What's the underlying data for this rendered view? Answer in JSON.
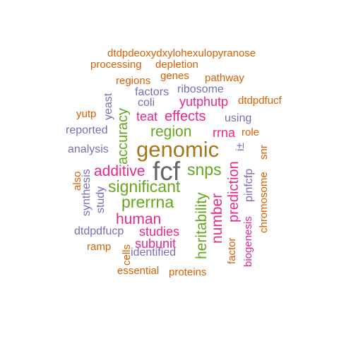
{
  "palette": {
    "orange": "#d95f02",
    "purple": "#7570b3",
    "pink": "#e7298a",
    "green": "#66a61e",
    "brown": "#a6761d",
    "gray": "#666666"
  },
  "words": [
    {
      "text": "dtdpdeoxydxylohexulopyranose",
      "color": "orange",
      "orientation": "horizontal"
    },
    {
      "text": "processing",
      "color": "orange",
      "orientation": "horizontal"
    },
    {
      "text": "depletion",
      "color": "orange",
      "orientation": "horizontal"
    },
    {
      "text": "genes",
      "color": "orange",
      "orientation": "horizontal"
    },
    {
      "text": "regions",
      "color": "orange",
      "orientation": "horizontal"
    },
    {
      "text": "pathway",
      "color": "orange",
      "orientation": "horizontal"
    },
    {
      "text": "factors",
      "color": "purple",
      "orientation": "horizontal"
    },
    {
      "text": "ribosome",
      "color": "purple",
      "orientation": "horizontal"
    },
    {
      "text": "coli",
      "color": "purple",
      "orientation": "horizontal"
    },
    {
      "text": "dtdpdfucf",
      "color": "orange",
      "orientation": "horizontal"
    },
    {
      "text": "yeast",
      "color": "purple",
      "orientation": "vertical"
    },
    {
      "text": "yutphutp",
      "color": "pink",
      "orientation": "horizontal"
    },
    {
      "text": "yutp",
      "color": "orange",
      "orientation": "horizontal"
    },
    {
      "text": "teat",
      "color": "pink",
      "orientation": "horizontal"
    },
    {
      "text": "effects",
      "color": "pink",
      "orientation": "horizontal"
    },
    {
      "text": "using",
      "color": "purple",
      "orientation": "horizontal"
    },
    {
      "text": "accuracy",
      "color": "green",
      "orientation": "vertical"
    },
    {
      "text": "reported",
      "color": "purple",
      "orientation": "horizontal"
    },
    {
      "text": "region",
      "color": "green",
      "orientation": "horizontal"
    },
    {
      "text": "rrna",
      "color": "pink",
      "orientation": "horizontal"
    },
    {
      "text": "role",
      "color": "orange",
      "orientation": "horizontal"
    },
    {
      "text": "genomic",
      "color": "brown",
      "orientation": "horizontal"
    },
    {
      "text": "analysis",
      "color": "purple",
      "orientation": "horizontal"
    },
    {
      "text": "i±",
      "color": "purple",
      "orientation": "vertical"
    },
    {
      "text": "snr",
      "color": "orange",
      "orientation": "vertical"
    },
    {
      "text": "fcf",
      "color": "gray",
      "orientation": "horizontal"
    },
    {
      "text": "additive",
      "color": "pink",
      "orientation": "horizontal"
    },
    {
      "text": "snps",
      "color": "green",
      "orientation": "horizontal"
    },
    {
      "text": "also",
      "color": "orange",
      "orientation": "vertical"
    },
    {
      "text": "synthesis",
      "color": "purple",
      "orientation": "vertical"
    },
    {
      "text": "study",
      "color": "purple",
      "orientation": "vertical"
    },
    {
      "text": "significant",
      "color": "green",
      "orientation": "horizontal"
    },
    {
      "text": "heritability",
      "color": "green",
      "orientation": "vertical"
    },
    {
      "text": "number",
      "color": "pink",
      "orientation": "vertical"
    },
    {
      "text": "prediction",
      "color": "pink",
      "orientation": "vertical"
    },
    {
      "text": "pinfcfp",
      "color": "purple",
      "orientation": "vertical"
    },
    {
      "text": "chromosome",
      "color": "orange",
      "orientation": "vertical"
    },
    {
      "text": "prerrna",
      "color": "green",
      "orientation": "horizontal"
    },
    {
      "text": "human",
      "color": "pink",
      "orientation": "horizontal"
    },
    {
      "text": "dtdpdfucp",
      "color": "purple",
      "orientation": "horizontal"
    },
    {
      "text": "studies",
      "color": "pink",
      "orientation": "horizontal"
    },
    {
      "text": "subunit",
      "color": "pink",
      "orientation": "horizontal"
    },
    {
      "text": "ramp",
      "color": "orange",
      "orientation": "horizontal"
    },
    {
      "text": "cells",
      "color": "orange",
      "orientation": "vertical"
    },
    {
      "text": "identified",
      "color": "purple",
      "orientation": "horizontal"
    },
    {
      "text": "factor",
      "color": "orange",
      "orientation": "vertical"
    },
    {
      "text": "biogenesis",
      "color": "pink",
      "orientation": "vertical"
    },
    {
      "text": "essential",
      "color": "orange",
      "orientation": "horizontal"
    },
    {
      "text": "proteins",
      "color": "orange",
      "orientation": "horizontal"
    }
  ]
}
